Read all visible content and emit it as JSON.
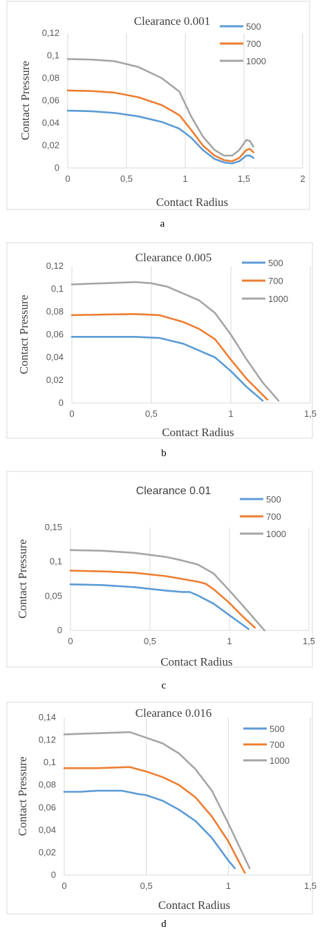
{
  "colors": {
    "500": "#5b9bd5",
    "700": "#ed7d31",
    "1000": "#a5a5a5"
  },
  "chart_data": [
    {
      "type": "line",
      "title": "Clearance 0.001",
      "xlabel": "Contact Radius",
      "ylabel": "Contact Pressure",
      "caption": "a",
      "xlim": [
        0,
        2
      ],
      "ylim": [
        0,
        0.12
      ],
      "xticks": [
        0,
        0.5,
        1,
        1.5,
        2
      ],
      "xtick_labels": [
        "0",
        "0,5",
        "1",
        "1,5",
        "2"
      ],
      "yticks": [
        0,
        0.02,
        0.04,
        0.06,
        0.08,
        0.1,
        0.12
      ],
      "ytick_labels": [
        "0",
        "0,02",
        "0,04",
        "0,06",
        "0,08",
        "0,1",
        "0,12"
      ],
      "grid": "vertical",
      "legend": "top-right",
      "series": [
        {
          "name": "500",
          "color": "#5b9bd5",
          "x": [
            0,
            0.2,
            0.4,
            0.6,
            0.8,
            0.95,
            1.05,
            1.15,
            1.25,
            1.33,
            1.4,
            1.46,
            1.52,
            1.55,
            1.58
          ],
          "y": [
            0.051,
            0.0505,
            0.049,
            0.046,
            0.041,
            0.035,
            0.027,
            0.016,
            0.008,
            0.005,
            0.004,
            0.006,
            0.011,
            0.011,
            0.009
          ]
        },
        {
          "name": "700",
          "color": "#ed7d31",
          "x": [
            0,
            0.2,
            0.4,
            0.6,
            0.8,
            0.95,
            1.05,
            1.15,
            1.25,
            1.33,
            1.4,
            1.46,
            1.52,
            1.55,
            1.58
          ],
          "y": [
            0.069,
            0.0685,
            0.067,
            0.063,
            0.056,
            0.047,
            0.034,
            0.02,
            0.011,
            0.007,
            0.006,
            0.009,
            0.016,
            0.017,
            0.014
          ]
        },
        {
          "name": "1000",
          "color": "#a5a5a5",
          "x": [
            0,
            0.2,
            0.4,
            0.6,
            0.8,
            0.95,
            1.05,
            1.15,
            1.25,
            1.33,
            1.4,
            1.46,
            1.52,
            1.55,
            1.58
          ],
          "y": [
            0.097,
            0.0965,
            0.095,
            0.09,
            0.08,
            0.068,
            0.046,
            0.028,
            0.016,
            0.011,
            0.011,
            0.016,
            0.025,
            0.024,
            0.019
          ]
        }
      ]
    },
    {
      "type": "line",
      "title": "Clearance 0.005",
      "xlabel": "Contact Radius",
      "ylabel": "Contact Pressure",
      "caption": "b",
      "xlim": [
        0,
        1.5
      ],
      "ylim": [
        0,
        0.12
      ],
      "xticks": [
        0,
        0.5,
        1,
        1.5
      ],
      "xtick_labels": [
        "0",
        "0,5",
        "1",
        "1,5"
      ],
      "yticks": [
        0,
        0.02,
        0.04,
        0.06,
        0.08,
        0.1,
        0.12
      ],
      "ytick_labels": [
        "0",
        "0,02",
        "0,04",
        "0,06",
        "0,08",
        "0,1",
        "0,12"
      ],
      "grid": "vertical",
      "legend": "top-right",
      "series": [
        {
          "name": "500",
          "color": "#5b9bd5",
          "x": [
            0,
            0.2,
            0.4,
            0.55,
            0.7,
            0.8,
            0.9,
            1.0,
            1.1,
            1.2
          ],
          "y": [
            0.058,
            0.058,
            0.058,
            0.057,
            0.052,
            0.046,
            0.04,
            0.028,
            0.014,
            0.002
          ]
        },
        {
          "name": "700",
          "color": "#ed7d31",
          "x": [
            0,
            0.2,
            0.4,
            0.55,
            0.7,
            0.8,
            0.9,
            1.0,
            1.1,
            1.23
          ],
          "y": [
            0.077,
            0.0775,
            0.078,
            0.077,
            0.071,
            0.065,
            0.056,
            0.038,
            0.021,
            0.003
          ]
        },
        {
          "name": "1000",
          "color": "#a5a5a5",
          "x": [
            0,
            0.2,
            0.4,
            0.5,
            0.6,
            0.7,
            0.8,
            0.9,
            1.0,
            1.1,
            1.2,
            1.3
          ],
          "y": [
            0.104,
            0.105,
            0.106,
            0.105,
            0.102,
            0.096,
            0.09,
            0.079,
            0.06,
            0.038,
            0.018,
            0.002
          ]
        }
      ]
    },
    {
      "type": "line",
      "title": "Clearance 0.01",
      "xlabel": "Contact Radius",
      "ylabel": "Contact Pressure",
      "caption": "c",
      "xlim": [
        0,
        1.5
      ],
      "ylim": [
        0,
        0.15
      ],
      "xticks": [
        0,
        0.5,
        1,
        1.5
      ],
      "xtick_labels": [
        "0",
        "0,5",
        "1",
        "1,5"
      ],
      "yticks": [
        0,
        0.05,
        0.1,
        0.15
      ],
      "ytick_labels": [
        "0",
        "0,05",
        "0,1",
        "0,15"
      ],
      "grid": "vertical",
      "legend": "top-right",
      "series": [
        {
          "name": "500",
          "color": "#5b9bd5",
          "x": [
            0,
            0.2,
            0.4,
            0.6,
            0.7,
            0.75,
            0.8,
            0.9,
            1.0,
            1.12
          ],
          "y": [
            0.067,
            0.066,
            0.063,
            0.058,
            0.056,
            0.056,
            0.051,
            0.039,
            0.022,
            0.002
          ]
        },
        {
          "name": "700",
          "color": "#ed7d31",
          "x": [
            0,
            0.2,
            0.4,
            0.6,
            0.7,
            0.8,
            0.85,
            0.9,
            1.0,
            1.08,
            1.16
          ],
          "y": [
            0.087,
            0.086,
            0.084,
            0.079,
            0.075,
            0.071,
            0.068,
            0.06,
            0.04,
            0.021,
            0.004
          ]
        },
        {
          "name": "1000",
          "color": "#a5a5a5",
          "x": [
            0,
            0.2,
            0.4,
            0.6,
            0.7,
            0.8,
            0.9,
            1.0,
            1.1,
            1.22
          ],
          "y": [
            0.117,
            0.116,
            0.113,
            0.107,
            0.102,
            0.096,
            0.083,
            0.058,
            0.032,
            0.0
          ]
        }
      ]
    },
    {
      "type": "line",
      "title": "Clearance 0.016",
      "xlabel": "Contact Radius",
      "ylabel": "Contact Pressure",
      "caption": "d",
      "xlim": [
        0,
        1.5
      ],
      "ylim": [
        0,
        0.14
      ],
      "xticks": [
        0,
        0.5,
        1,
        1.5
      ],
      "xtick_labels": [
        "0",
        "0,5",
        "1",
        "1,5"
      ],
      "yticks": [
        0,
        0.02,
        0.04,
        0.06,
        0.08,
        0.1,
        0.12,
        0.14
      ],
      "ytick_labels": [
        "0",
        "0,02",
        "0,04",
        "0,06",
        "0,08",
        "0,1",
        "0,12",
        "0,14"
      ],
      "grid": "vertical",
      "legend": "top-right",
      "series": [
        {
          "name": "500",
          "color": "#5b9bd5",
          "x": [
            0,
            0.1,
            0.2,
            0.35,
            0.45,
            0.5,
            0.6,
            0.7,
            0.8,
            0.9,
            1.0,
            1.04
          ],
          "y": [
            0.074,
            0.074,
            0.075,
            0.075,
            0.072,
            0.071,
            0.066,
            0.058,
            0.048,
            0.033,
            0.013,
            0.006
          ]
        },
        {
          "name": "700",
          "color": "#ed7d31",
          "x": [
            0,
            0.2,
            0.4,
            0.5,
            0.6,
            0.7,
            0.8,
            0.9,
            1.0,
            1.1
          ],
          "y": [
            0.095,
            0.095,
            0.096,
            0.092,
            0.087,
            0.08,
            0.069,
            0.052,
            0.03,
            0.002
          ]
        },
        {
          "name": "1000",
          "color": "#a5a5a5",
          "x": [
            0,
            0.2,
            0.4,
            0.5,
            0.6,
            0.7,
            0.8,
            0.9,
            1.0,
            1.13
          ],
          "y": [
            0.125,
            0.126,
            0.127,
            0.122,
            0.117,
            0.108,
            0.094,
            0.075,
            0.046,
            0.006
          ]
        }
      ]
    }
  ]
}
